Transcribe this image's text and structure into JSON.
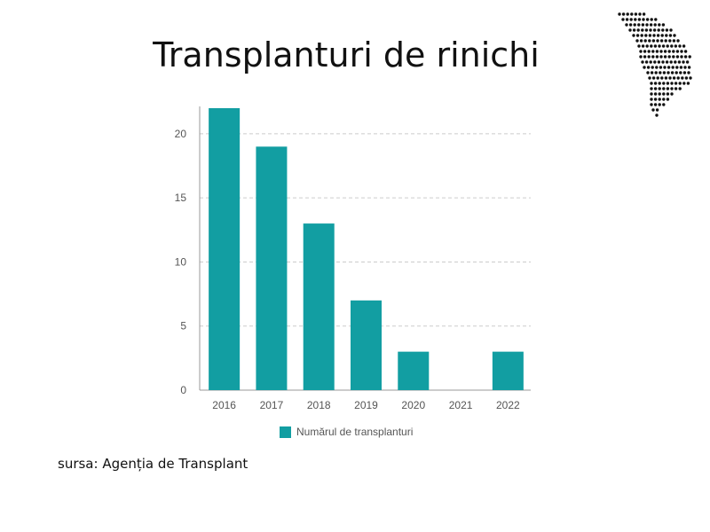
{
  "title": "Transplanturi de rinichi",
  "source": "sursa: Agenția de Transplant",
  "logo_icon": "moldova-dotted-map-icon",
  "colors": {
    "bar": "#129ea2",
    "grid": "#cccccc",
    "axis": "#999999"
  },
  "chart_data": {
    "type": "bar",
    "categories": [
      "2016",
      "2017",
      "2018",
      "2019",
      "2020",
      "2021",
      "2022"
    ],
    "series": [
      {
        "name": "Numărul de transplanturi",
        "values": [
          22,
          19,
          13,
          7,
          3,
          0,
          3
        ]
      }
    ],
    "title": "",
    "xlabel": "",
    "ylabel": "",
    "ylim": [
      0,
      22
    ],
    "yticks": [
      "0",
      "5",
      "10",
      "15",
      "20"
    ],
    "grid": true,
    "legend": "bottom-center"
  }
}
